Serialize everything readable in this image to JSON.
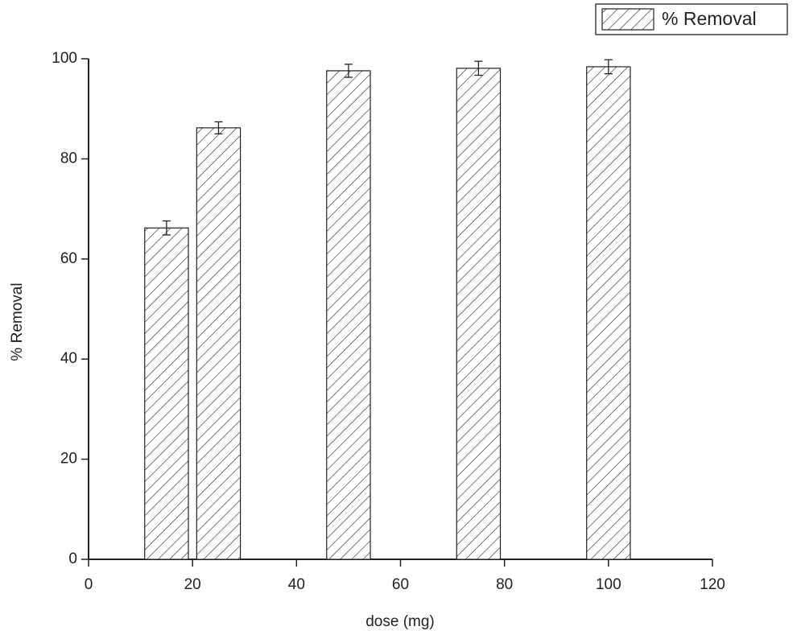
{
  "chart_data": {
    "type": "bar",
    "x_label": "dose (mg)",
    "y_label": "% Removal",
    "x": [
      15,
      25,
      50,
      75,
      100
    ],
    "series": [
      {
        "name": "% Removal",
        "color": "#222222",
        "values": [
          66.2,
          86.2,
          97.6,
          98.1,
          98.4
        ],
        "errors": [
          1.4,
          1.2,
          1.3,
          1.4,
          1.4
        ]
      }
    ],
    "xlim": [
      0,
      120
    ],
    "xticks": [
      0,
      20,
      40,
      60,
      80,
      100,
      120
    ],
    "ylim": [
      0,
      100
    ],
    "yticks": [
      0,
      20,
      40,
      60,
      80,
      100
    ],
    "grid": false,
    "legend": "top-right"
  }
}
